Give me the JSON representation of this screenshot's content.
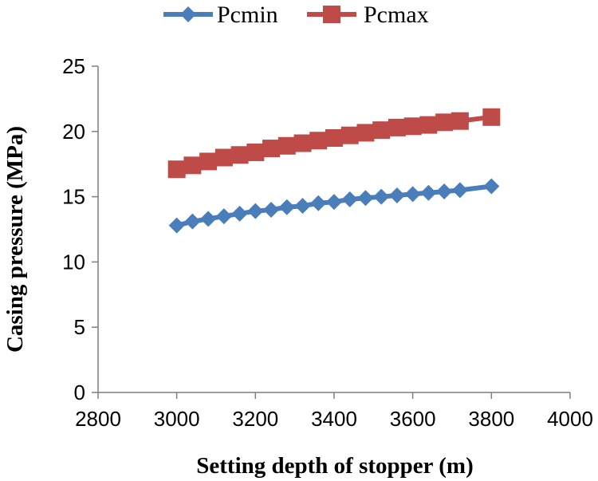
{
  "chart_data": {
    "type": "line",
    "title": "",
    "xlabel": "Setting depth of stopper (m)",
    "ylabel": "Casing pressure (MPa)",
    "xlim": [
      2800,
      4000
    ],
    "ylim": [
      0,
      25
    ],
    "xticks": [
      2800,
      3000,
      3200,
      3400,
      3600,
      3800,
      4000
    ],
    "yticks": [
      0,
      5,
      10,
      15,
      20,
      25
    ],
    "xtick_labels": [
      "2800",
      "3000",
      "3200",
      "3400",
      "3600",
      "3800",
      "4000"
    ],
    "ytick_labels": [
      "0",
      "5",
      "10",
      "15",
      "20",
      "25"
    ],
    "grid": false,
    "legend_position": "top",
    "series": [
      {
        "name": "Pcmin",
        "color": "#4a7ebb",
        "marker": "diamond",
        "x": [
          3000,
          3040,
          3080,
          3120,
          3160,
          3200,
          3240,
          3280,
          3320,
          3360,
          3400,
          3440,
          3480,
          3520,
          3560,
          3600,
          3640,
          3680,
          3720,
          3800
        ],
        "y": [
          12.8,
          13.1,
          13.3,
          13.5,
          13.7,
          13.9,
          14.0,
          14.2,
          14.3,
          14.5,
          14.6,
          14.8,
          14.9,
          15.0,
          15.1,
          15.2,
          15.3,
          15.4,
          15.5,
          15.8
        ]
      },
      {
        "name": "Pcmax",
        "color": "#be4b48",
        "marker": "square",
        "x": [
          3000,
          3040,
          3080,
          3120,
          3160,
          3200,
          3240,
          3280,
          3320,
          3360,
          3400,
          3440,
          3480,
          3520,
          3560,
          3600,
          3640,
          3680,
          3720,
          3800
        ],
        "y": [
          17.1,
          17.4,
          17.7,
          18.0,
          18.2,
          18.4,
          18.7,
          18.9,
          19.1,
          19.3,
          19.5,
          19.7,
          19.9,
          20.1,
          20.3,
          20.4,
          20.5,
          20.7,
          20.8,
          21.1
        ]
      }
    ]
  }
}
